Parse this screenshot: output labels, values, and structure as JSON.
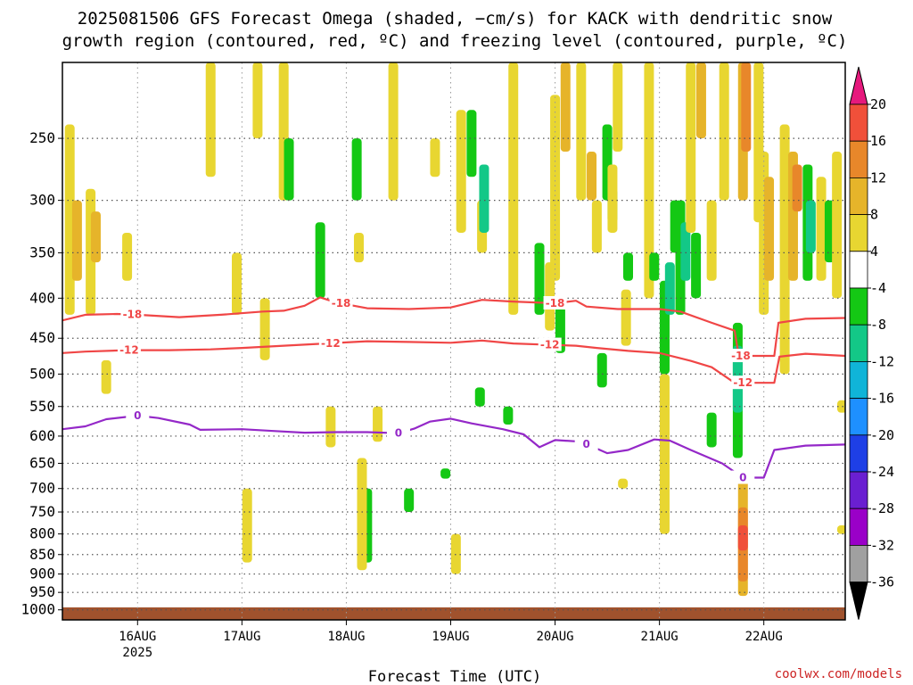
{
  "title_line1": "2025081506 GFS Forecast Omega (shaded, −cm/s) for KACK with dendritic snow",
  "title_line2": "growth region (contoured, red, ºC) and freezing level (contoured, purple, ºC)",
  "credit": "coolwx.com/models",
  "chart_data": {
    "type": "heatmap",
    "xlabel": "Forecast Time (UTC)",
    "x_ticks": [
      {
        "label": "16AUG",
        "sub": "2025",
        "day": 16
      },
      {
        "label": "17AUG",
        "sub": "",
        "day": 17
      },
      {
        "label": "18AUG",
        "sub": "",
        "day": 18
      },
      {
        "label": "19AUG",
        "sub": "",
        "day": 19
      },
      {
        "label": "20AUG",
        "sub": "",
        "day": 20
      },
      {
        "label": "21AUG",
        "sub": "",
        "day": 21
      },
      {
        "label": "22AUG",
        "sub": "",
        "day": 22
      }
    ],
    "xlim_days": [
      15.28,
      22.78
    ],
    "y_axis": "pressure (hPa)",
    "y_log_scale": true,
    "ylim": [
      1030,
      200
    ],
    "y_ticks": [
      250,
      300,
      350,
      400,
      450,
      500,
      550,
      600,
      650,
      700,
      750,
      800,
      850,
      900,
      950,
      1000
    ],
    "grid": true,
    "colorbar": {
      "levels": [
        -36,
        -32,
        -28,
        -24,
        -20,
        -16,
        -12,
        -8,
        -4,
        4,
        8,
        12,
        16,
        20
      ],
      "labels": [
        "-36",
        "-32",
        "-28",
        "-24",
        "-20",
        "-16",
        "-12",
        "-8",
        "-4",
        "4",
        "8",
        "12",
        "16",
        "20"
      ],
      "colors": [
        "#000000",
        "#a0a0a0",
        "#9a00c8",
        "#6a1fd1",
        "#1e3fe6",
        "#1e90ff",
        "#10b4d8",
        "#13c887",
        "#14c814",
        "#ffffff",
        "#e8d631",
        "#e6b42a",
        "#e8872a",
        "#f0503a",
        "#e6197d"
      ]
    },
    "series": [
      {
        "name": "-18",
        "color": "#f04646",
        "label_days": [
          15.95,
          17.95,
          20.0,
          21.78
        ],
        "points": [
          [
            15.28,
            427
          ],
          [
            15.5,
            420
          ],
          [
            15.8,
            419
          ],
          [
            16.0,
            420
          ],
          [
            16.4,
            423
          ],
          [
            16.8,
            420
          ],
          [
            17.2,
            416
          ],
          [
            17.4,
            415
          ],
          [
            17.6,
            409
          ],
          [
            17.75,
            399
          ],
          [
            17.9,
            405
          ],
          [
            18.2,
            412
          ],
          [
            18.6,
            413
          ],
          [
            19.0,
            411
          ],
          [
            19.3,
            402
          ],
          [
            19.6,
            404
          ],
          [
            20.0,
            406
          ],
          [
            20.2,
            403
          ],
          [
            20.3,
            410
          ],
          [
            20.6,
            413
          ],
          [
            21.0,
            413
          ],
          [
            21.2,
            416
          ],
          [
            21.5,
            430
          ],
          [
            21.72,
            440
          ],
          [
            21.76,
            474
          ],
          [
            22.1,
            474
          ],
          [
            22.14,
            430
          ],
          [
            22.4,
            425
          ],
          [
            22.78,
            424
          ]
        ]
      },
      {
        "name": "-12",
        "color": "#f04646",
        "label_days": [
          15.92,
          17.85,
          19.95,
          21.8
        ],
        "points": [
          [
            15.28,
            470
          ],
          [
            15.5,
            468
          ],
          [
            15.9,
            466
          ],
          [
            16.3,
            466
          ],
          [
            16.7,
            465
          ],
          [
            17.0,
            463
          ],
          [
            17.4,
            460
          ],
          [
            17.8,
            457
          ],
          [
            18.2,
            454
          ],
          [
            18.6,
            455
          ],
          [
            19.0,
            456
          ],
          [
            19.3,
            453
          ],
          [
            19.6,
            457
          ],
          [
            20.0,
            459
          ],
          [
            20.2,
            460
          ],
          [
            20.4,
            463
          ],
          [
            20.7,
            467
          ],
          [
            21.0,
            470
          ],
          [
            21.3,
            481
          ],
          [
            21.5,
            490
          ],
          [
            21.72,
            513
          ],
          [
            22.1,
            513
          ],
          [
            22.15,
            475
          ],
          [
            22.4,
            471
          ],
          [
            22.78,
            474
          ]
        ]
      },
      {
        "name": "0",
        "color": "#9428c8",
        "label_days": [
          16.0,
          18.5,
          20.3,
          21.8
        ],
        "points": [
          [
            15.28,
            588
          ],
          [
            15.5,
            583
          ],
          [
            15.7,
            571
          ],
          [
            16.0,
            565
          ],
          [
            16.2,
            569
          ],
          [
            16.5,
            580
          ],
          [
            16.6,
            589
          ],
          [
            17.0,
            588
          ],
          [
            17.3,
            591
          ],
          [
            17.6,
            594
          ],
          [
            17.9,
            593
          ],
          [
            18.2,
            593
          ],
          [
            18.5,
            595
          ],
          [
            18.65,
            587
          ],
          [
            18.8,
            575
          ],
          [
            19.0,
            570
          ],
          [
            19.2,
            578
          ],
          [
            19.5,
            588
          ],
          [
            19.7,
            597
          ],
          [
            19.85,
            620
          ],
          [
            20.0,
            607
          ],
          [
            20.25,
            610
          ],
          [
            20.5,
            631
          ],
          [
            20.7,
            625
          ],
          [
            20.95,
            606
          ],
          [
            21.1,
            608
          ],
          [
            21.3,
            625
          ],
          [
            21.6,
            650
          ],
          [
            21.8,
            678
          ],
          [
            22.0,
            678
          ],
          [
            22.1,
            625
          ],
          [
            22.4,
            617
          ],
          [
            22.78,
            615
          ]
        ]
      }
    ],
    "omega_cells": [
      {
        "day": 15.35,
        "p1": 240,
        "p2": 420,
        "level": 4
      },
      {
        "day": 15.42,
        "p1": 300,
        "p2": 380,
        "level": 8
      },
      {
        "day": 15.55,
        "p1": 290,
        "p2": 420,
        "level": 4
      },
      {
        "day": 15.6,
        "p1": 310,
        "p2": 360,
        "level": 8
      },
      {
        "day": 15.7,
        "p1": 480,
        "p2": 530,
        "level": 4
      },
      {
        "day": 15.9,
        "p1": 330,
        "p2": 380,
        "level": 4
      },
      {
        "day": 16.7,
        "p1": 200,
        "p2": 280,
        "level": 4
      },
      {
        "day": 16.95,
        "p1": 350,
        "p2": 420,
        "level": 4
      },
      {
        "day": 17.05,
        "p1": 700,
        "p2": 870,
        "level": 4
      },
      {
        "day": 17.15,
        "p1": 200,
        "p2": 250,
        "level": 4
      },
      {
        "day": 17.22,
        "p1": 400,
        "p2": 480,
        "level": 4
      },
      {
        "day": 17.4,
        "p1": 200,
        "p2": 300,
        "level": 4
      },
      {
        "day": 17.45,
        "p1": 250,
        "p2": 300,
        "level": -8
      },
      {
        "day": 17.75,
        "p1": 320,
        "p2": 400,
        "level": -8
      },
      {
        "day": 17.85,
        "p1": 550,
        "p2": 620,
        "level": 4
      },
      {
        "day": 18.1,
        "p1": 250,
        "p2": 300,
        "level": -8
      },
      {
        "day": 18.12,
        "p1": 330,
        "p2": 360,
        "level": 4
      },
      {
        "day": 18.2,
        "p1": 700,
        "p2": 870,
        "level": -8
      },
      {
        "day": 18.15,
        "p1": 640,
        "p2": 890,
        "level": 4
      },
      {
        "day": 18.3,
        "p1": 550,
        "p2": 610,
        "level": 4
      },
      {
        "day": 18.45,
        "p1": 200,
        "p2": 300,
        "level": 4
      },
      {
        "day": 18.6,
        "p1": 700,
        "p2": 750,
        "level": -8
      },
      {
        "day": 18.85,
        "p1": 250,
        "p2": 280,
        "level": 4
      },
      {
        "day": 18.95,
        "p1": 660,
        "p2": 680,
        "level": -8
      },
      {
        "day": 19.05,
        "p1": 800,
        "p2": 900,
        "level": 4
      },
      {
        "day": 19.1,
        "p1": 230,
        "p2": 330,
        "level": 4
      },
      {
        "day": 19.2,
        "p1": 230,
        "p2": 280,
        "level": -8
      },
      {
        "day": 19.3,
        "p1": 300,
        "p2": 350,
        "level": 4
      },
      {
        "day": 19.32,
        "p1": 270,
        "p2": 330,
        "level": -12
      },
      {
        "day": 19.28,
        "p1": 520,
        "p2": 550,
        "level": -8
      },
      {
        "day": 19.55,
        "p1": 550,
        "p2": 580,
        "level": -8
      },
      {
        "day": 19.6,
        "p1": 200,
        "p2": 420,
        "level": 4
      },
      {
        "day": 19.85,
        "p1": 340,
        "p2": 420,
        "level": -8
      },
      {
        "day": 19.95,
        "p1": 360,
        "p2": 440,
        "level": 4
      },
      {
        "day": 20.05,
        "p1": 410,
        "p2": 470,
        "level": -8
      },
      {
        "day": 20.0,
        "p1": 220,
        "p2": 380,
        "level": 4
      },
      {
        "day": 20.1,
        "p1": 200,
        "p2": 260,
        "level": 8
      },
      {
        "day": 20.25,
        "p1": 200,
        "p2": 300,
        "level": 4
      },
      {
        "day": 20.35,
        "p1": 260,
        "p2": 300,
        "level": 8
      },
      {
        "day": 20.4,
        "p1": 300,
        "p2": 350,
        "level": 4
      },
      {
        "day": 20.45,
        "p1": 470,
        "p2": 520,
        "level": -8
      },
      {
        "day": 20.5,
        "p1": 240,
        "p2": 300,
        "level": -8
      },
      {
        "day": 20.55,
        "p1": 290,
        "p2": 320,
        "level": -8
      },
      {
        "day": 20.55,
        "p1": 270,
        "p2": 330,
        "level": 4
      },
      {
        "day": 20.6,
        "p1": 200,
        "p2": 260,
        "level": 4
      },
      {
        "day": 20.7,
        "p1": 350,
        "p2": 380,
        "level": -8
      },
      {
        "day": 20.68,
        "p1": 390,
        "p2": 460,
        "level": 4
      },
      {
        "day": 20.65,
        "p1": 680,
        "p2": 700,
        "level": 4
      },
      {
        "day": 20.9,
        "p1": 200,
        "p2": 400,
        "level": 4
      },
      {
        "day": 20.95,
        "p1": 350,
        "p2": 380,
        "level": -8
      },
      {
        "day": 21.05,
        "p1": 380,
        "p2": 500,
        "level": -8
      },
      {
        "day": 21.1,
        "p1": 360,
        "p2": 420,
        "level": -12
      },
      {
        "day": 21.05,
        "p1": 500,
        "p2": 800,
        "level": 4
      },
      {
        "day": 21.15,
        "p1": 300,
        "p2": 350,
        "level": -8
      },
      {
        "day": 21.2,
        "p1": 300,
        "p2": 420,
        "level": -8
      },
      {
        "day": 21.25,
        "p1": 320,
        "p2": 380,
        "level": -12
      },
      {
        "day": 21.3,
        "p1": 200,
        "p2": 330,
        "level": 4
      },
      {
        "day": 21.35,
        "p1": 330,
        "p2": 400,
        "level": -8
      },
      {
        "day": 21.4,
        "p1": 200,
        "p2": 250,
        "level": 8
      },
      {
        "day": 21.5,
        "p1": 560,
        "p2": 620,
        "level": -8
      },
      {
        "day": 21.5,
        "p1": 300,
        "p2": 380,
        "level": 4
      },
      {
        "day": 21.62,
        "p1": 200,
        "p2": 300,
        "level": 4
      },
      {
        "day": 21.75,
        "p1": 430,
        "p2": 640,
        "level": -8
      },
      {
        "day": 21.75,
        "p1": 460,
        "p2": 560,
        "level": -12
      },
      {
        "day": 21.8,
        "p1": 200,
        "p2": 300,
        "level": 8
      },
      {
        "day": 21.83,
        "p1": 200,
        "p2": 260,
        "level": 12
      },
      {
        "day": 21.8,
        "p1": 680,
        "p2": 960,
        "level": 8
      },
      {
        "day": 21.8,
        "p1": 740,
        "p2": 920,
        "level": 12
      },
      {
        "day": 21.8,
        "p1": 780,
        "p2": 840,
        "level": 16
      },
      {
        "day": 21.95,
        "p1": 200,
        "p2": 320,
        "level": 4
      },
      {
        "day": 22.0,
        "p1": 260,
        "p2": 420,
        "level": 4
      },
      {
        "day": 22.05,
        "p1": 280,
        "p2": 380,
        "level": 8
      },
      {
        "day": 22.2,
        "p1": 240,
        "p2": 500,
        "level": 4
      },
      {
        "day": 22.28,
        "p1": 260,
        "p2": 380,
        "level": 8
      },
      {
        "day": 22.32,
        "p1": 270,
        "p2": 310,
        "level": 12
      },
      {
        "day": 22.42,
        "p1": 270,
        "p2": 380,
        "level": -8
      },
      {
        "day": 22.45,
        "p1": 300,
        "p2": 350,
        "level": -12
      },
      {
        "day": 22.55,
        "p1": 280,
        "p2": 380,
        "level": 4
      },
      {
        "day": 22.63,
        "p1": 300,
        "p2": 360,
        "level": -8
      },
      {
        "day": 22.7,
        "p1": 260,
        "p2": 400,
        "level": 4
      },
      {
        "day": 22.75,
        "p1": 540,
        "p2": 560,
        "level": 4
      },
      {
        "day": 22.75,
        "p1": 780,
        "p2": 800,
        "level": 4
      }
    ]
  }
}
